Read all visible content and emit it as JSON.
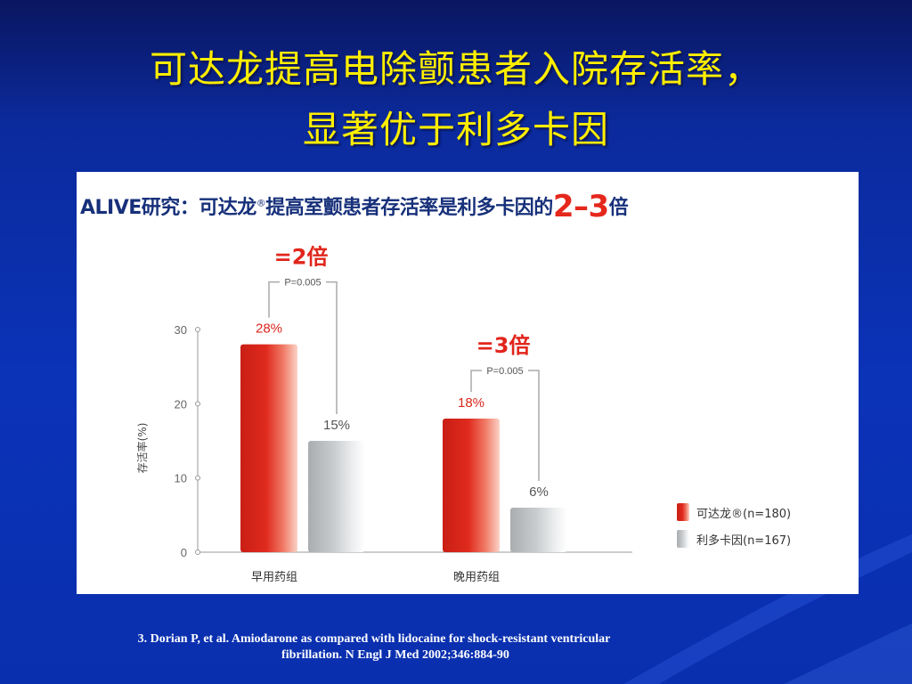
{
  "slide": {
    "title_line1": "可达龙提高电除颤患者入院存活率，",
    "title_line2": "显著优于利多卡因",
    "footnote_line1": "3. Dorian P, et al. Amiodarone as compared with lidocaine for shock-resistant ventricular",
    "footnote_line2": "fibrillation. N Engl J Med 2002;346:884-90"
  },
  "figure": {
    "heading_prefix": "ALIVE研究：可达龙",
    "heading_reg": "®",
    "heading_mid": "提高室颤患者存活率是利多卡因的",
    "heading_ratio": "2–3",
    "heading_suffix": "倍"
  },
  "colors": {
    "amiodarone": "#e02a1e",
    "lidocaine": "#c9ccce",
    "ratio_text": "#e1261c",
    "heading_text": "#17307a"
  },
  "chart_data": {
    "type": "bar",
    "categories": [
      "早用药组",
      "晚用药组"
    ],
    "series": [
      {
        "name": "可达龙®(n=180)",
        "values": [
          28,
          18
        ],
        "labels": [
          "28%",
          "18%"
        ]
      },
      {
        "name": "利多卡因(n=167)",
        "values": [
          15,
          6
        ],
        "labels": [
          "15%",
          "6%"
        ]
      }
    ],
    "ylabel": "存活率(%)",
    "ylim": [
      0,
      30
    ],
    "yticks": [
      "0",
      "10",
      "20",
      "30"
    ],
    "comparisons": [
      {
        "ratio": "=2倍",
        "p": "P=0.005"
      },
      {
        "ratio": "=3倍",
        "p": "P=0.005"
      }
    ],
    "legend_position": "bottom-right",
    "grid": false
  }
}
